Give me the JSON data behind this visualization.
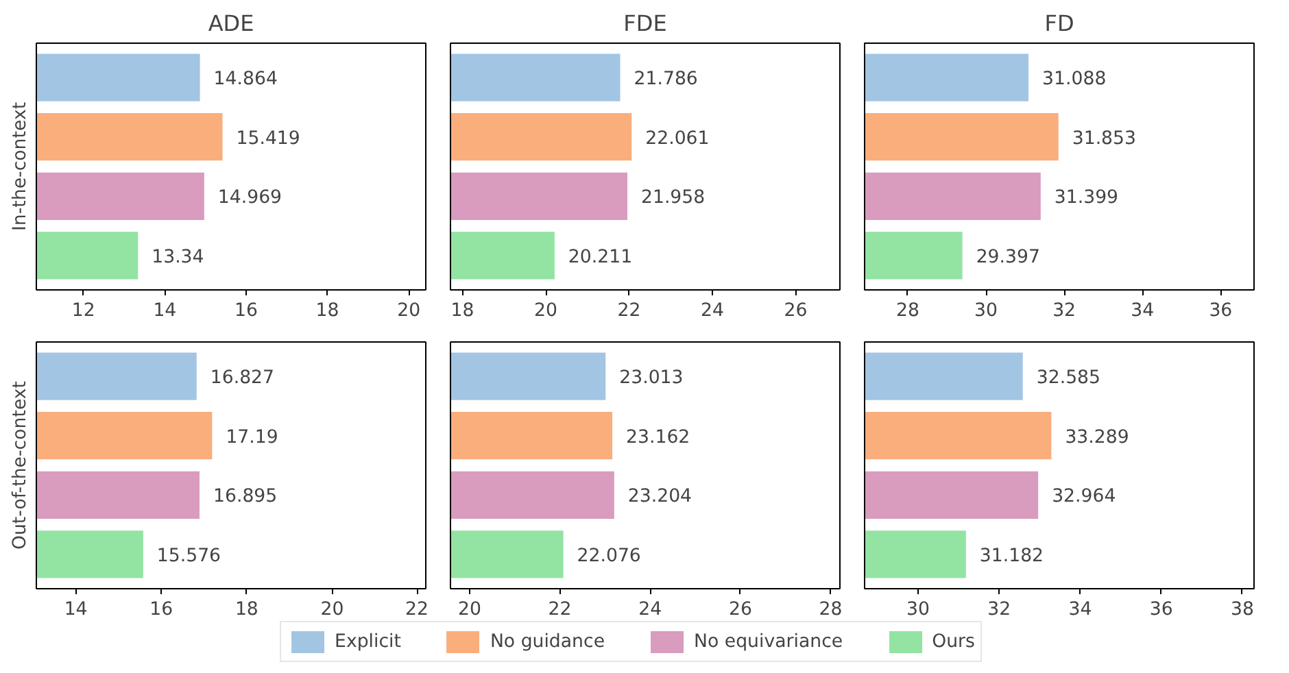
{
  "chart_data": [
    {
      "type": "bar",
      "orientation": "horizontal",
      "title": "ADE",
      "ylabel": "In-the-context",
      "categories": [
        null
      ],
      "data_labels": true,
      "xlim": [
        10.84,
        20.419
      ],
      "xticks": [
        12,
        14,
        16,
        18,
        20
      ],
      "grid": false,
      "series": [
        {
          "color": "#a3c5e4",
          "values": [
            14.864
          ]
        },
        {
          "color": "#f9ae7c",
          "values": [
            15.419
          ]
        },
        {
          "color": "#d99bbe",
          "values": [
            14.969
          ]
        },
        {
          "color": "#93e3a3",
          "values": [
            13.34
          ]
        }
      ]
    },
    {
      "type": "bar",
      "orientation": "horizontal",
      "title": "FDE",
      "categories": [
        null
      ],
      "data_labels": true,
      "xlim": [
        17.711,
        27.061
      ],
      "xticks": [
        18,
        20,
        22,
        24,
        26
      ],
      "grid": false,
      "series": [
        {
          "color": "#a3c5e4",
          "values": [
            21.786
          ]
        },
        {
          "color": "#f9ae7c",
          "values": [
            22.061
          ]
        },
        {
          "color": "#d99bbe",
          "values": [
            21.958
          ]
        },
        {
          "color": "#93e3a3",
          "values": [
            20.211
          ]
        }
      ]
    },
    {
      "type": "bar",
      "orientation": "horizontal",
      "title": "FD",
      "categories": [
        null
      ],
      "data_labels": true,
      "xlim": [
        26.897,
        36.853
      ],
      "xticks": [
        28,
        30,
        32,
        34,
        36
      ],
      "grid": false,
      "series": [
        {
          "color": "#a3c5e4",
          "values": [
            31.088
          ]
        },
        {
          "color": "#f9ae7c",
          "values": [
            31.853
          ]
        },
        {
          "color": "#d99bbe",
          "values": [
            31.399
          ]
        },
        {
          "color": "#93e3a3",
          "values": [
            29.397
          ]
        }
      ]
    },
    {
      "type": "bar",
      "orientation": "horizontal",
      "ylabel": "Out-of-the-context",
      "categories": [
        null
      ],
      "data_labels": true,
      "xlim": [
        13.076,
        22.19
      ],
      "xticks": [
        14,
        16,
        18,
        20,
        22
      ],
      "grid": false,
      "series": [
        {
          "color": "#a3c5e4",
          "values": [
            16.827
          ]
        },
        {
          "color": "#f9ae7c",
          "values": [
            17.19
          ]
        },
        {
          "color": "#d99bbe",
          "values": [
            16.895
          ]
        },
        {
          "color": "#93e3a3",
          "values": [
            15.576
          ]
        }
      ]
    },
    {
      "type": "bar",
      "orientation": "horizontal",
      "categories": [
        null
      ],
      "data_labels": true,
      "xlim": [
        19.576,
        28.204
      ],
      "xticks": [
        20,
        22,
        24,
        26,
        28
      ],
      "grid": false,
      "series": [
        {
          "color": "#a3c5e4",
          "values": [
            23.013
          ]
        },
        {
          "color": "#f9ae7c",
          "values": [
            23.162
          ]
        },
        {
          "color": "#d99bbe",
          "values": [
            23.204
          ]
        },
        {
          "color": "#93e3a3",
          "values": [
            22.076
          ]
        }
      ]
    },
    {
      "type": "bar",
      "orientation": "horizontal",
      "categories": [
        null
      ],
      "data_labels": true,
      "xlim": [
        28.682,
        38.289
      ],
      "xticks": [
        30,
        32,
        34,
        36,
        38
      ],
      "grid": false,
      "legend": "bottom",
      "series": [
        {
          "name": "Explicit",
          "color": "#a3c5e4",
          "values": [
            32.585
          ]
        },
        {
          "name": "No guidance",
          "color": "#f9ae7c",
          "values": [
            33.289
          ]
        },
        {
          "name": "No equivariance",
          "color": "#d99bbe",
          "values": [
            32.964
          ]
        },
        {
          "name": "Ours",
          "color": "#93e3a3",
          "values": [
            31.182
          ]
        }
      ]
    }
  ]
}
